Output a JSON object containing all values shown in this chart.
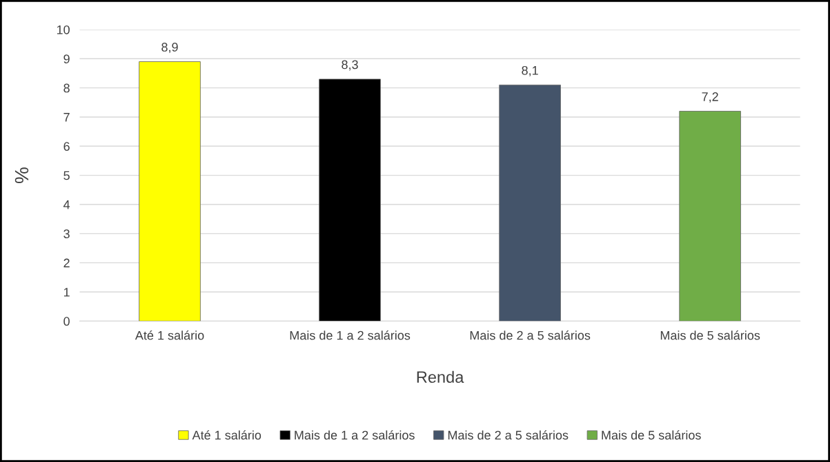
{
  "chart_data": {
    "type": "bar",
    "xlabel": "Renda",
    "ylabel": "%",
    "categories": [
      "Até 1 salário",
      "Mais de 1 a 2 salários",
      "Mais de 2 a 5 salários",
      "Mais de 5 salários"
    ],
    "series": [
      {
        "name": "Até 1 salário",
        "color": "#ffff00",
        "values": [
          8.9,
          null,
          null,
          null
        ],
        "value_labels": [
          "8,9",
          null,
          null,
          null
        ]
      },
      {
        "name": "Mais de 1 a 2 salários",
        "color": "#000000",
        "values": [
          null,
          8.3,
          null,
          null
        ],
        "value_labels": [
          null,
          "8,3",
          null,
          null
        ]
      },
      {
        "name": "Mais de 2 a 5 salários",
        "color": "#44546a",
        "values": [
          null,
          null,
          8.1,
          null
        ],
        "value_labels": [
          null,
          null,
          "8,1",
          null
        ]
      },
      {
        "name": "Mais de 5 salários",
        "color": "#70ad47",
        "values": [
          null,
          null,
          null,
          7.2
        ],
        "value_labels": [
          null,
          null,
          null,
          "7,2"
        ]
      }
    ],
    "stacked": true,
    "ylim": [
      0,
      10
    ],
    "yticks": [
      0,
      1,
      2,
      3,
      4,
      5,
      6,
      7,
      8,
      9,
      10
    ],
    "grid": "y",
    "legend": "bottom"
  }
}
